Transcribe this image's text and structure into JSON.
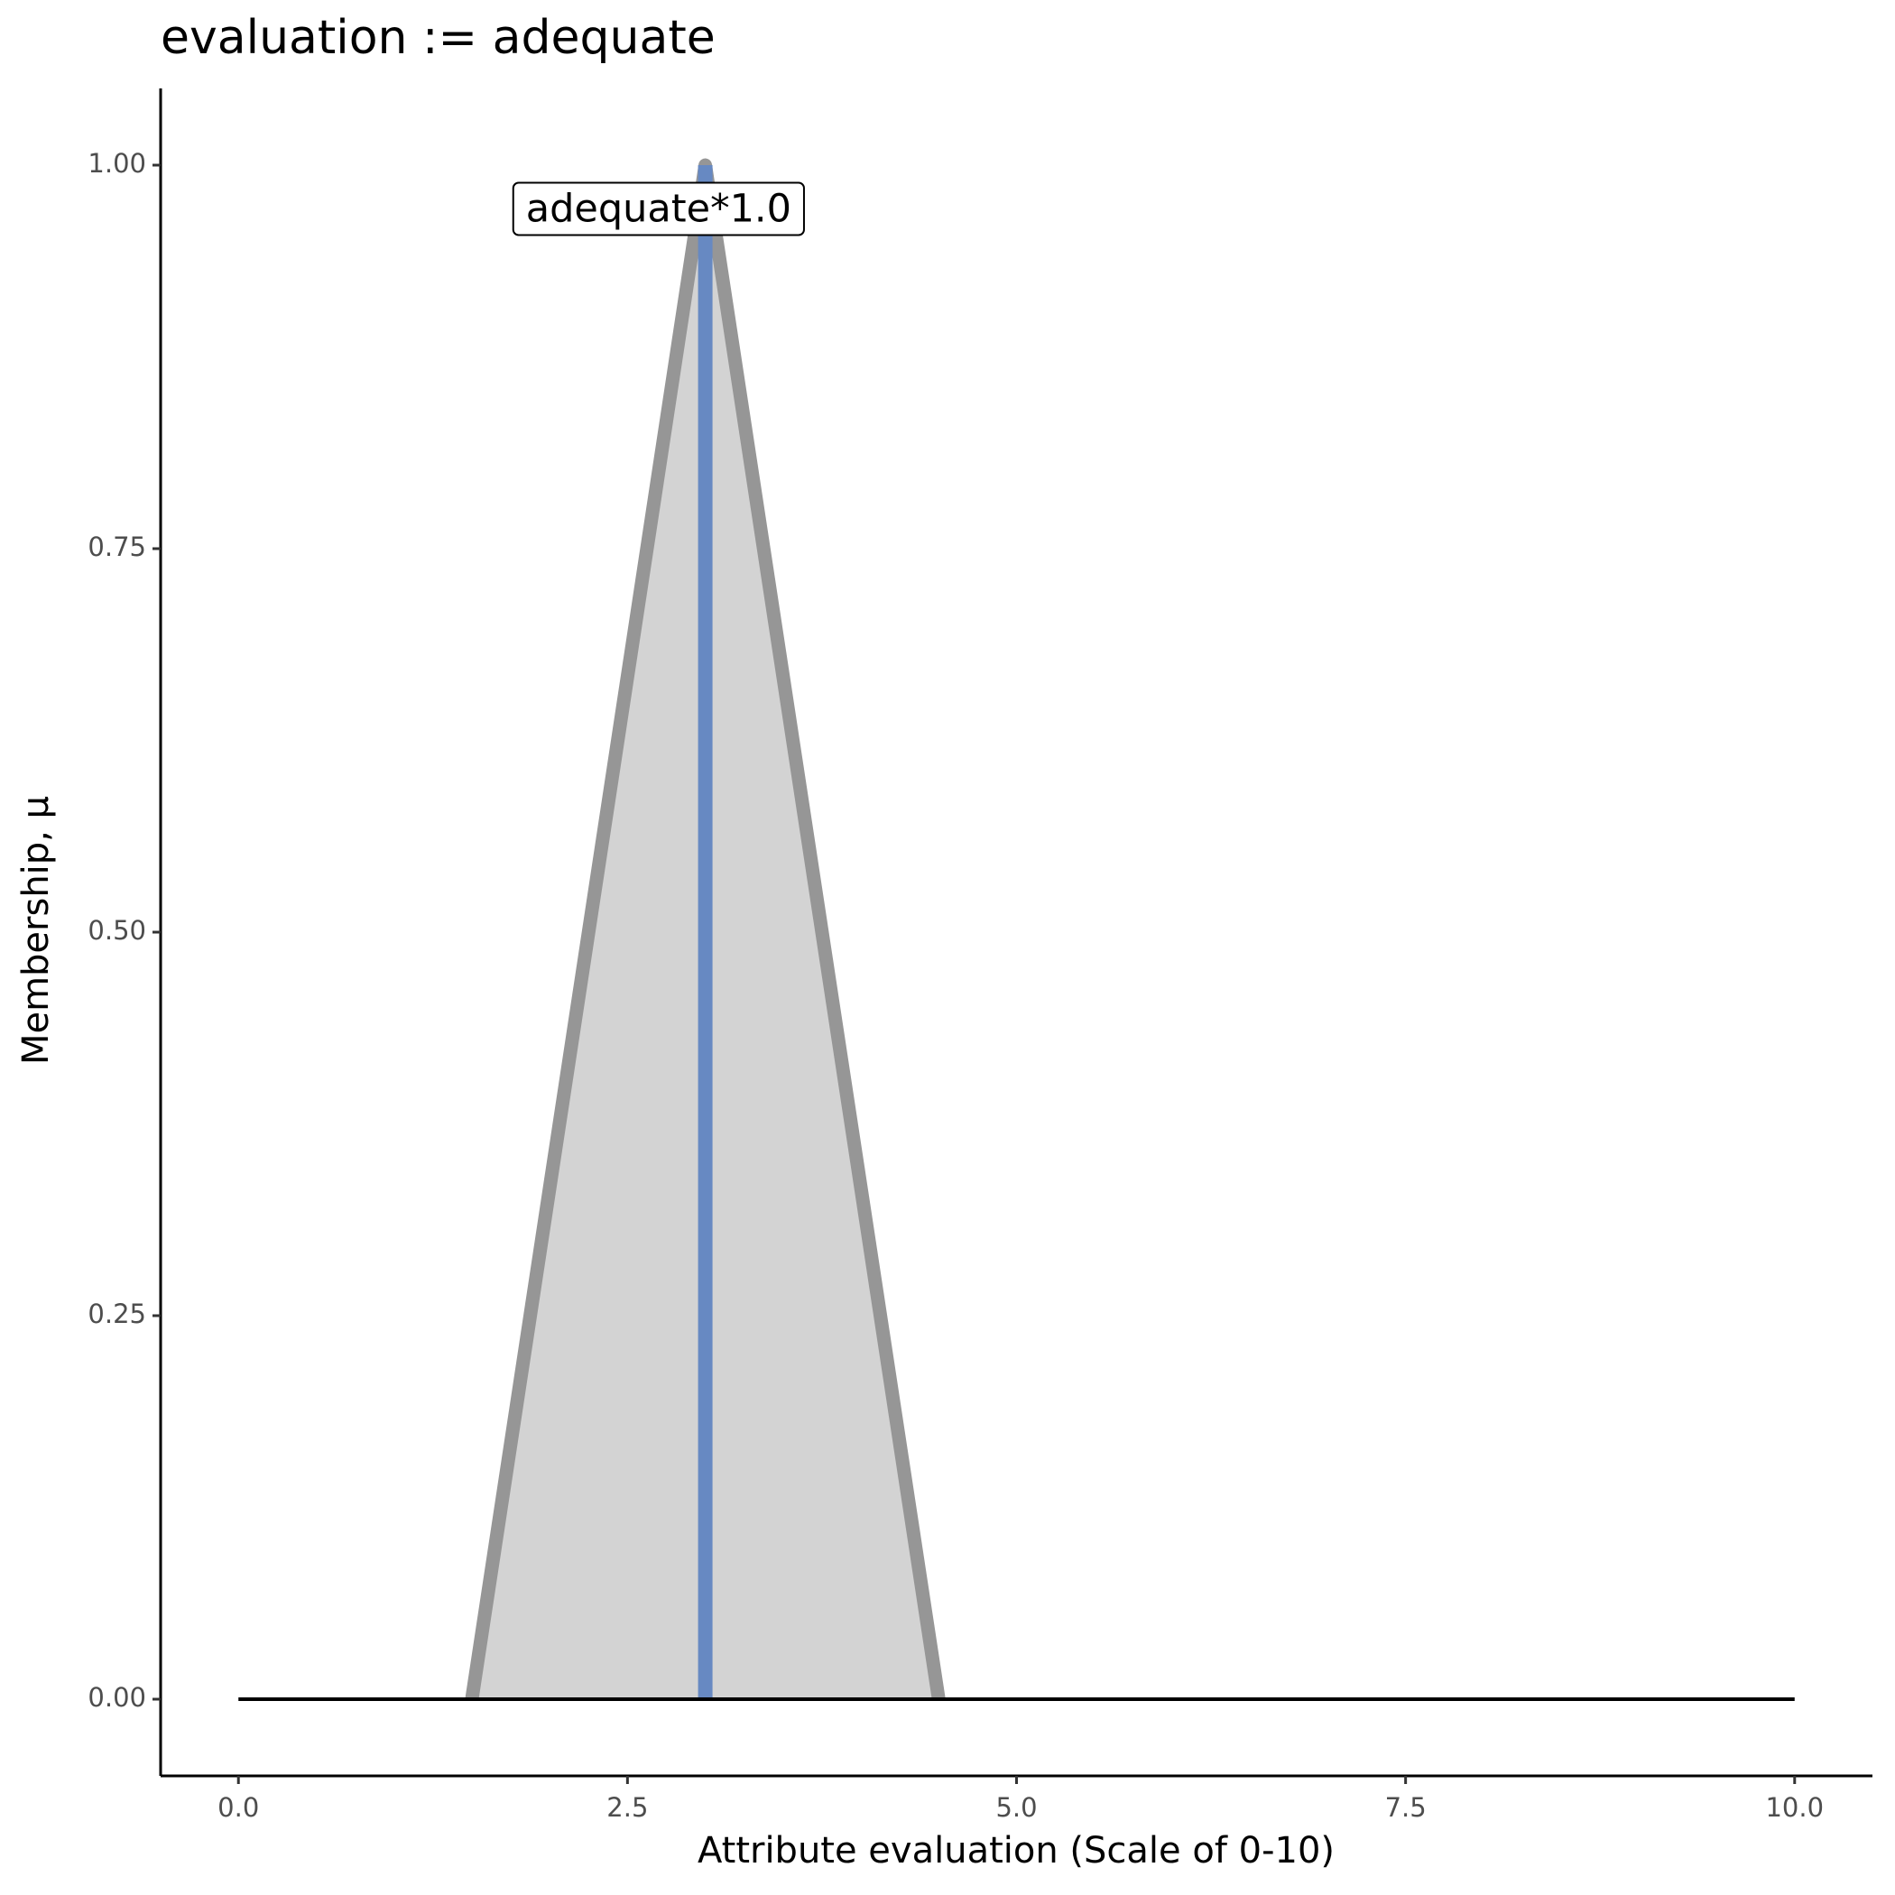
{
  "chart_data": {
    "type": "line",
    "title": "evaluation := adequate",
    "x_label": "Attribute evaluation (Scale of 0-10)",
    "y_label": "Membership, μ",
    "series": [
      {
        "x": [
          1.5,
          3,
          4.5
        ],
        "values": [
          0,
          1,
          0
        ],
        "color": "#969696",
        "fill": "#d3d3d3"
      },
      {
        "x": [
          3,
          3
        ],
        "values": [
          0,
          1
        ],
        "color": "#6789c2"
      },
      {
        "x": [
          0,
          10
        ],
        "values": [
          0,
          0
        ],
        "color": "#000000"
      }
    ],
    "annotations": [
      {
        "text": "adequate*1.0",
        "x": 2.7,
        "y": 0.97
      }
    ],
    "xlim": [
      -0.5,
      10.5
    ],
    "ylim": [
      -0.05,
      1.05
    ],
    "xticks": [
      {
        "value": 0,
        "label": "0.0"
      },
      2.5,
      {
        "value": 5,
        "label": "5.0"
      },
      7.5,
      {
        "value": 10,
        "label": "10.0"
      }
    ],
    "yticks": [
      {
        "value": 0,
        "label": "0.00"
      },
      0.25,
      {
        "value": 0.5,
        "label": "0.50"
      },
      0.75,
      {
        "value": 1,
        "label": "1.00"
      }
    ],
    "grid": false
  }
}
